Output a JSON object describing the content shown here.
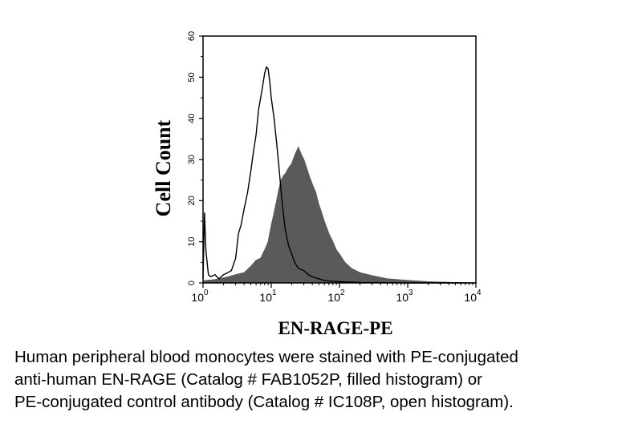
{
  "chart_data": {
    "type": "area",
    "xlabel": "EN-RAGE-PE",
    "ylabel": "Cell Count",
    "xscale": "log",
    "xlim": [
      1,
      10000
    ],
    "ylim": [
      0,
      60
    ],
    "grid": false,
    "y_ticks": [
      {
        "value": 0,
        "label": "0"
      },
      {
        "value": 10,
        "label": "10"
      },
      {
        "value": 20,
        "label": "20"
      },
      {
        "value": 30,
        "label": "30"
      },
      {
        "value": 40,
        "label": "40"
      },
      {
        "value": 50,
        "label": "50"
      },
      {
        "value": 60,
        "label": "60"
      }
    ],
    "x_ticks": [
      {
        "value": 1,
        "base": "10",
        "exp": "0"
      },
      {
        "value": 10,
        "base": "10",
        "exp": "1"
      },
      {
        "value": 100,
        "base": "10",
        "exp": "2"
      },
      {
        "value": 1000,
        "base": "10",
        "exp": "3"
      },
      {
        "value": 10000,
        "base": "10",
        "exp": "4"
      }
    ],
    "series": [
      {
        "style": "filled",
        "color": "#5a5a5a",
        "x": [
          1,
          1.5,
          2,
          3,
          4,
          5,
          6,
          7,
          8,
          9,
          10,
          11,
          12,
          13,
          14,
          15,
          16,
          18,
          20,
          22,
          25,
          28,
          30,
          33,
          36,
          40,
          45,
          50,
          55,
          60,
          70,
          80,
          90,
          100,
          120,
          150,
          200,
          300,
          500,
          1000,
          2000,
          5000,
          10000
        ],
        "y": [
          0.5,
          0.8,
          1.2,
          2,
          2.5,
          4,
          5.5,
          6,
          8,
          10,
          14,
          17,
          20,
          23,
          25,
          26,
          26.5,
          28,
          29,
          31,
          33,
          31,
          30,
          28,
          26,
          24,
          22,
          19,
          17,
          15,
          12,
          10,
          8,
          7,
          5,
          3.5,
          2.5,
          1.8,
          1,
          0.6,
          0.3,
          0.1,
          0
        ]
      },
      {
        "style": "outline",
        "color": "#000000",
        "x": [
          1,
          1.05,
          1.1,
          1.2,
          1.3,
          1.5,
          1.7,
          2,
          2.3,
          2.6,
          3,
          3.3,
          3.6,
          4,
          4.5,
          5,
          5.5,
          6,
          6.5,
          7,
          7.5,
          8,
          8.5,
          9,
          9.5,
          10,
          11,
          12,
          13,
          14,
          15,
          16,
          18,
          20,
          22,
          25,
          30,
          35,
          40,
          50,
          60,
          80,
          100,
          150,
          200,
          500,
          1000,
          10000
        ],
        "y": [
          1,
          17,
          8,
          2,
          1.5,
          2,
          1,
          2,
          2.5,
          3,
          6,
          12,
          14,
          18,
          22,
          27,
          32,
          36,
          42,
          45,
          48,
          51,
          52.5,
          52,
          49,
          45,
          40,
          34,
          28,
          22,
          17,
          13,
          9,
          7,
          5,
          3.5,
          3,
          2,
          1.5,
          1,
          0.6,
          0.4,
          0.3,
          0.2,
          0.1,
          0.05,
          0,
          0
        ]
      }
    ]
  },
  "caption": {
    "lines": [
      "Human peripheral blood monocytes were stained with PE-conjugated",
      "anti-human EN-RAGE (Catalog # FAB1052P, filled histogram) or",
      "PE-conjugated control antibody (Catalog # IC108P, open histogram)."
    ]
  }
}
